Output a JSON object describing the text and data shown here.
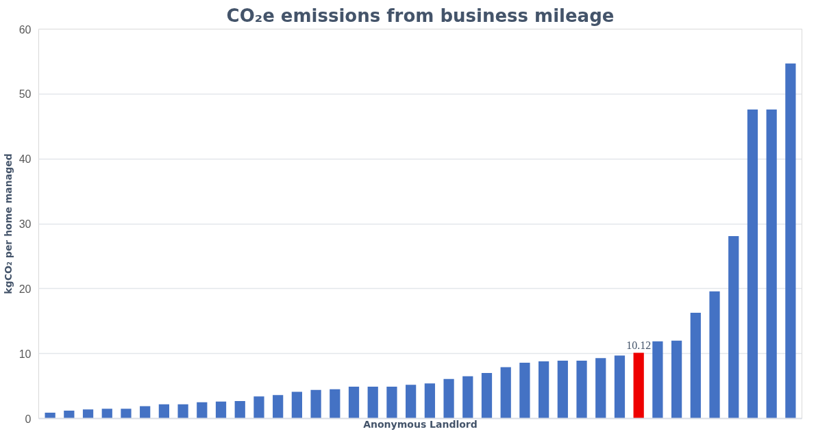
{
  "chart_data": {
    "type": "bar",
    "title": "CO₂e emissions from business mileage",
    "xlabel": "Anonymous Landlord",
    "ylabel": "kgCO₂ per home managed",
    "categories": [
      null,
      null,
      null,
      null,
      null,
      null,
      null,
      null,
      null,
      null,
      null,
      null,
      null,
      null,
      null,
      null,
      null,
      null,
      null,
      null,
      null,
      null,
      null,
      null,
      null,
      null,
      null,
      null,
      null,
      null,
      null,
      null,
      null,
      null,
      null,
      null,
      null,
      null,
      null,
      null
    ],
    "values": [
      0.9,
      1.2,
      1.4,
      1.5,
      1.5,
      1.9,
      2.2,
      2.2,
      2.5,
      2.6,
      2.7,
      3.4,
      3.6,
      4.1,
      4.4,
      4.5,
      4.9,
      4.9,
      4.9,
      5.2,
      5.4,
      6.1,
      6.5,
      7.0,
      7.9,
      8.6,
      8.8,
      8.9,
      8.9,
      9.3,
      9.7,
      10.12,
      11.9,
      12.0,
      16.3,
      19.6,
      28.1,
      47.6,
      47.6,
      54.7
    ],
    "colors": [
      "#4472c4",
      "#4472c4",
      "#4472c4",
      "#4472c4",
      "#4472c4",
      "#4472c4",
      "#4472c4",
      "#4472c4",
      "#4472c4",
      "#4472c4",
      "#4472c4",
      "#4472c4",
      "#4472c4",
      "#4472c4",
      "#4472c4",
      "#4472c4",
      "#4472c4",
      "#4472c4",
      "#4472c4",
      "#4472c4",
      "#4472c4",
      "#4472c4",
      "#4472c4",
      "#4472c4",
      "#4472c4",
      "#4472c4",
      "#4472c4",
      "#4472c4",
      "#4472c4",
      "#4472c4",
      "#4472c4",
      "#ee0000",
      "#4472c4",
      "#4472c4",
      "#4472c4",
      "#4472c4",
      "#4472c4",
      "#4472c4",
      "#4472c4",
      "#4472c4"
    ],
    "value_labels": [
      null,
      null,
      null,
      null,
      null,
      null,
      null,
      null,
      null,
      null,
      null,
      null,
      null,
      null,
      null,
      null,
      null,
      null,
      null,
      null,
      null,
      null,
      null,
      null,
      null,
      null,
      null,
      null,
      null,
      null,
      null,
      "10.12",
      null,
      null,
      null,
      null,
      null,
      null,
      null,
      null
    ],
    "ylim": [
      0,
      60
    ],
    "yticks": [
      0,
      10,
      20,
      30,
      40,
      50,
      60
    ],
    "grid": "y"
  }
}
